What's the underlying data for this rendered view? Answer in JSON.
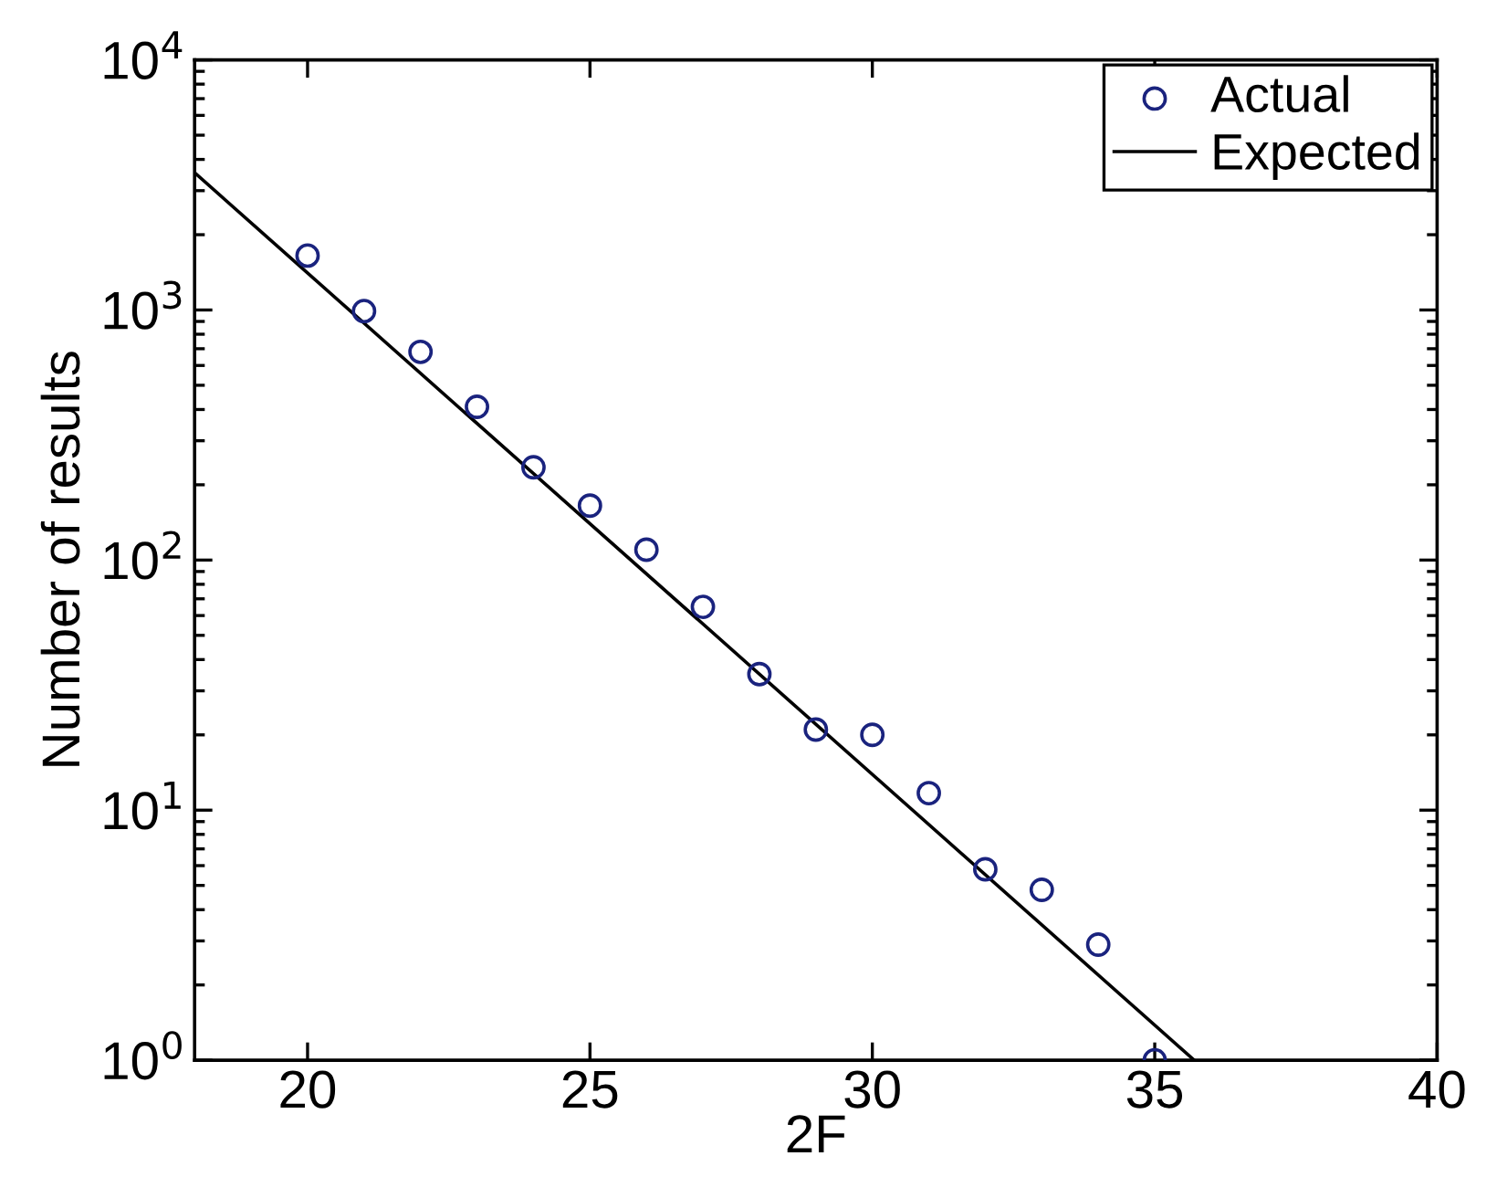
{
  "chart_data": {
    "type": "scatter",
    "xlabel": "2F",
    "ylabel": "Number of results",
    "log": "y",
    "xlim": [
      18,
      40
    ],
    "xticks": [
      20,
      25,
      30,
      35,
      40
    ],
    "ylim": [
      1,
      10000
    ],
    "yticks": [
      {
        "value": 1,
        "label": "10$^{0}$"
      },
      {
        "value": 10,
        "label": "10$^{1}$"
      },
      {
        "value": 100,
        "label": "10$^{2}$"
      },
      {
        "value": 1000,
        "label": "10$^{3}$"
      },
      {
        "value": 10000,
        "label": "10$^{4}$"
      }
    ],
    "grid": false,
    "legend": "top right",
    "series": [
      {
        "name": "Actual",
        "color": "#1a237e",
        "marker": "circle",
        "x": [
          20,
          21,
          22,
          23,
          24,
          25,
          26,
          27,
          28,
          29,
          30,
          31,
          32,
          33,
          34,
          35
        ],
        "values": [
          1650,
          990,
          680,
          410,
          235,
          165,
          110,
          65,
          35,
          21,
          20,
          11.7,
          5.8,
          4.8,
          2.9,
          1
        ]
      },
      {
        "name": "Expected",
        "type": "line",
        "color": "#000000",
        "marker": "none",
        "line_style": "solid",
        "x": [
          18,
          35.7
        ],
        "values": [
          3540,
          1
        ]
      }
    ]
  }
}
